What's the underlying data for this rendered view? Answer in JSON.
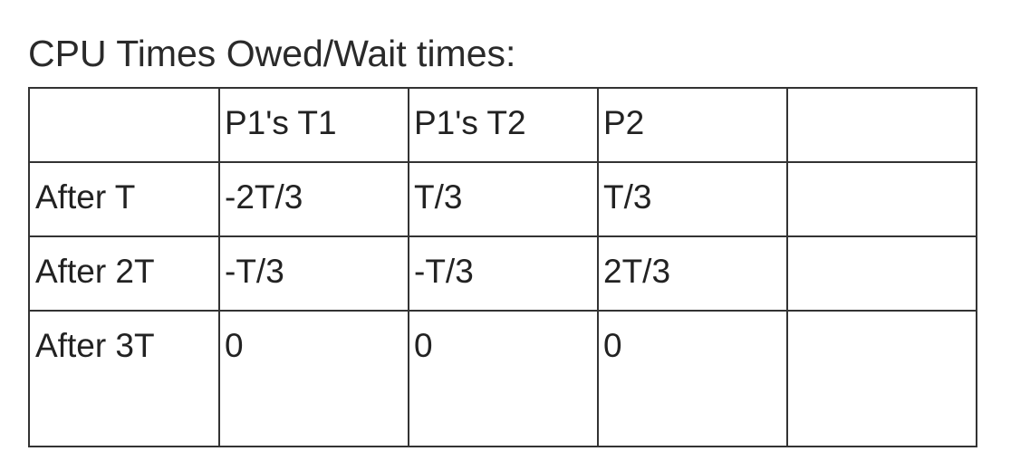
{
  "title": "CPU Times Owed/Wait times:",
  "table": {
    "header": [
      "",
      "P1's T1",
      "P1's T2",
      "P2",
      ""
    ],
    "rows": [
      [
        "After T",
        "-2T/3",
        "T/3",
        "T/3",
        ""
      ],
      [
        "After 2T",
        "-T/3",
        "-T/3",
        "2T/3",
        ""
      ],
      [
        "After 3T",
        "0",
        "0",
        "0",
        ""
      ]
    ]
  }
}
